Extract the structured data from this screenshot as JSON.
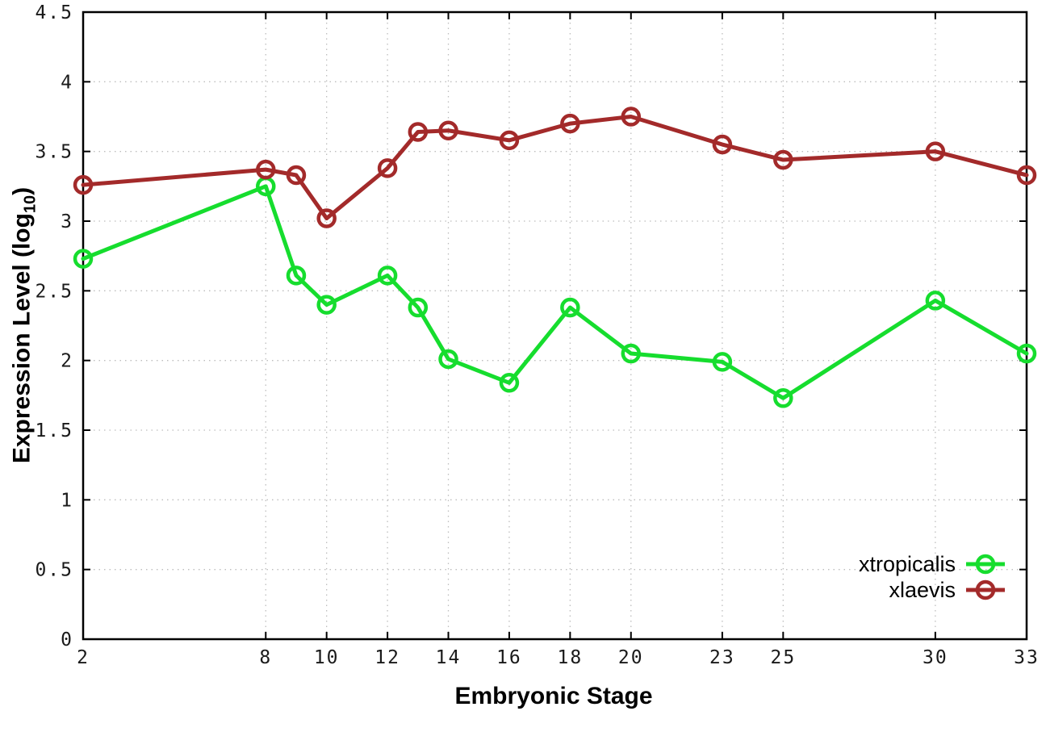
{
  "chart_data": {
    "type": "line",
    "xlabel": "Embryonic Stage",
    "ylabel": {
      "main": "Expression Level (log",
      "sub": "10",
      "end": ")"
    },
    "x": [
      2,
      8,
      9,
      10,
      12,
      13,
      14,
      16,
      18,
      20,
      23,
      25,
      30,
      33
    ],
    "xticks": [
      2,
      8,
      10,
      12,
      14,
      16,
      18,
      20,
      23,
      25,
      30,
      33
    ],
    "yticks": [
      0,
      0.5,
      1,
      1.5,
      2,
      2.5,
      3,
      3.5,
      4,
      4.5
    ],
    "xlim": [
      2,
      33
    ],
    "ylim": [
      0,
      4.5
    ],
    "grid": true,
    "legend_position": "inside-bottom-right",
    "series": [
      {
        "name": "xtropicalis",
        "color": "#16dd2e",
        "values": [
          2.73,
          3.25,
          2.61,
          2.4,
          2.61,
          2.38,
          2.01,
          1.84,
          2.38,
          2.05,
          1.99,
          1.73,
          2.43,
          2.05
        ]
      },
      {
        "name": "xlaevis",
        "color": "#a32a2a",
        "values": [
          3.26,
          3.37,
          3.33,
          3.02,
          3.38,
          3.64,
          3.65,
          3.58,
          3.7,
          3.75,
          3.55,
          3.44,
          3.5,
          3.33
        ]
      }
    ]
  },
  "style": {
    "axis_color": "#000000",
    "grid_color": "#bdbdbd",
    "background": "#ffffff"
  }
}
